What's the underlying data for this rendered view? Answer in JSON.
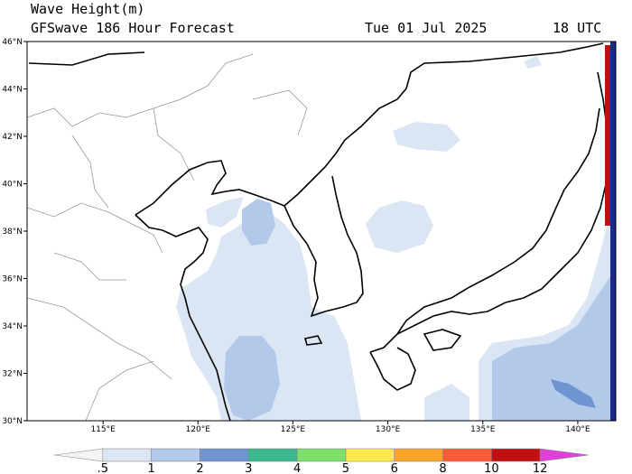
{
  "header": {
    "title": "Wave Height(m)",
    "model": "GFSwave 186 Hour Forecast",
    "date": "Tue 01 Jul 2025",
    "time": "18 UTC"
  },
  "map": {
    "lon_range": [
      111,
      142
    ],
    "lat_range": [
      30,
      46
    ],
    "lon_ticks": [
      "115°E",
      "120°E",
      "125°E",
      "130°E",
      "135°E",
      "140°E"
    ],
    "lat_ticks": [
      "30°N",
      "32°N",
      "34°N",
      "36°N",
      "38°N",
      "40°N",
      "42°N",
      "44°N",
      "46°N"
    ]
  },
  "colorbar": {
    "labels": [
      ".5",
      "1",
      "2",
      "3",
      "4",
      "5",
      "6",
      "8",
      "10",
      "12"
    ],
    "colors": [
      "#f4f4f4",
      "#dbe6f4",
      "#b3c9ea",
      "#6e95cf",
      "#3cb88e",
      "#7ee06a",
      "#ffe84a",
      "#ffa42a",
      "#ff5a3a",
      "#c20f12",
      "#e040d8"
    ]
  }
}
